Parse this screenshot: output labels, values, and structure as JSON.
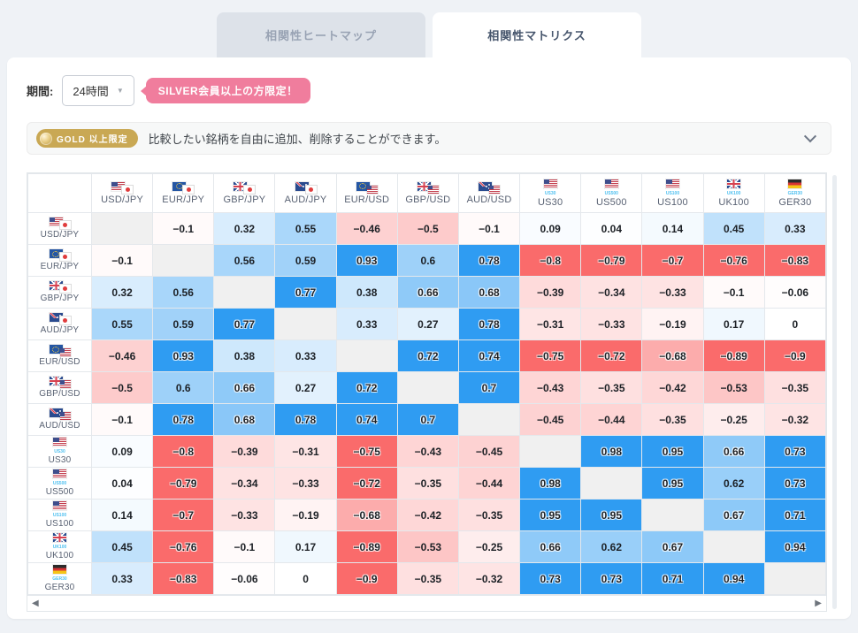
{
  "tabs": [
    {
      "label": "相関性ヒートマップ",
      "active": false
    },
    {
      "label": "相関性マトリクス",
      "active": true
    }
  ],
  "controls": {
    "period_label": "期間:",
    "period_value": "24時間",
    "silver_badge": "SILVER会員以上の方限定！"
  },
  "gold_banner": {
    "badge": "GOLD 以上限定",
    "text": "比較したい銘柄を自由に追加、削除することができます。"
  },
  "colors": {
    "positive": "#2f9cf2",
    "negative": "#fa6b6b",
    "diagonal": "#f0f0f0",
    "accent_pink": "#f07d9d",
    "accent_gold": "#c9a854"
  },
  "instruments": [
    {
      "code": "USD/JPY",
      "flags": [
        "us",
        "jp"
      ]
    },
    {
      "code": "EUR/JPY",
      "flags": [
        "eu",
        "jp"
      ]
    },
    {
      "code": "GBP/JPY",
      "flags": [
        "gb",
        "jp"
      ]
    },
    {
      "code": "AUD/JPY",
      "flags": [
        "au",
        "jp"
      ]
    },
    {
      "code": "EUR/USD",
      "flags": [
        "eu",
        "us"
      ]
    },
    {
      "code": "GBP/USD",
      "flags": [
        "gb",
        "us"
      ]
    },
    {
      "code": "AUD/USD",
      "flags": [
        "au",
        "us"
      ]
    },
    {
      "code": "US30",
      "flags": [
        "us"
      ],
      "caption": "US30"
    },
    {
      "code": "US500",
      "flags": [
        "us"
      ],
      "caption": "US500"
    },
    {
      "code": "US100",
      "flags": [
        "us"
      ],
      "caption": "US100"
    },
    {
      "code": "UK100",
      "flags": [
        "gb"
      ],
      "caption": "UK100"
    },
    {
      "code": "GER30",
      "flags": [
        "de"
      ],
      "caption": "GER30"
    }
  ],
  "chart_data": {
    "type": "heatmap",
    "title": "相関性マトリクス",
    "subtitle": "期間: 24時間",
    "categories": [
      "USD/JPY",
      "EUR/JPY",
      "GBP/JPY",
      "AUD/JPY",
      "EUR/USD",
      "GBP/USD",
      "AUD/USD",
      "US30",
      "US500",
      "US100",
      "UK100",
      "GER30"
    ],
    "matrix": [
      [
        null,
        -0.1,
        0.32,
        0.55,
        -0.46,
        -0.5,
        -0.1,
        0.09,
        0.04,
        0.14,
        0.45,
        0.33
      ],
      [
        -0.1,
        null,
        0.56,
        0.59,
        0.93,
        0.6,
        0.78,
        -0.8,
        -0.79,
        -0.7,
        -0.76,
        -0.83
      ],
      [
        0.32,
        0.56,
        null,
        0.77,
        0.38,
        0.66,
        0.68,
        -0.39,
        -0.34,
        -0.33,
        -0.1,
        -0.06
      ],
      [
        0.55,
        0.59,
        0.77,
        null,
        0.33,
        0.27,
        0.78,
        -0.31,
        -0.33,
        -0.19,
        0.17,
        0
      ],
      [
        -0.46,
        0.93,
        0.38,
        0.33,
        null,
        0.72,
        0.74,
        -0.75,
        -0.72,
        -0.68,
        -0.89,
        -0.9
      ],
      [
        -0.5,
        0.6,
        0.66,
        0.27,
        0.72,
        null,
        0.7,
        -0.43,
        -0.35,
        -0.42,
        -0.53,
        -0.35
      ],
      [
        -0.1,
        0.78,
        0.68,
        0.78,
        0.74,
        0.7,
        null,
        -0.45,
        -0.44,
        -0.35,
        -0.25,
        -0.32
      ],
      [
        0.09,
        -0.8,
        -0.39,
        -0.31,
        -0.75,
        -0.43,
        -0.45,
        null,
        0.98,
        0.95,
        0.66,
        0.73
      ],
      [
        0.04,
        -0.79,
        -0.34,
        -0.33,
        -0.72,
        -0.35,
        -0.44,
        0.98,
        null,
        0.95,
        0.62,
        0.73
      ],
      [
        0.14,
        -0.7,
        -0.33,
        -0.19,
        -0.68,
        -0.42,
        -0.35,
        0.95,
        0.95,
        null,
        0.67,
        0.71
      ],
      [
        0.45,
        -0.76,
        -0.1,
        0.17,
        -0.89,
        -0.53,
        -0.25,
        0.66,
        0.62,
        0.67,
        null,
        0.94
      ],
      [
        0.33,
        -0.83,
        -0.06,
        0,
        -0.9,
        -0.35,
        -0.32,
        0.73,
        0.73,
        0.71,
        0.94,
        null
      ]
    ],
    "color_scale": {
      "positive": "#2f9cf2",
      "negative": "#fa6b6b",
      "solid_threshold": 0.7
    },
    "legend_position": "none",
    "grid": true
  },
  "scrollbar": {
    "left_arrow": "◀",
    "right_arrow": "▶"
  }
}
